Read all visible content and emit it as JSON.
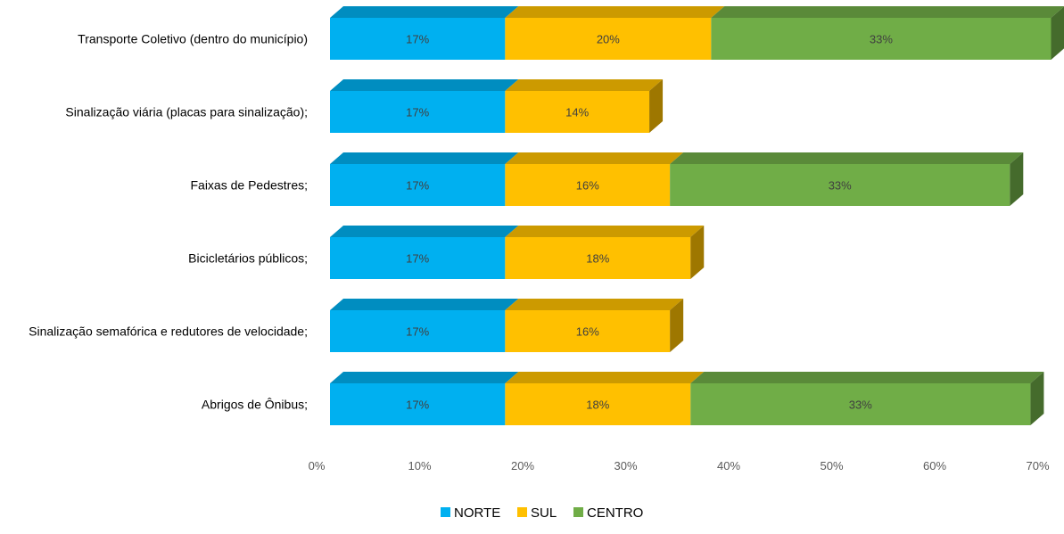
{
  "chart_data": {
    "type": "bar",
    "orientation": "horizontal",
    "stacked": true,
    "three_d": true,
    "categories": [
      "Transporte Coletivo (dentro do município)",
      "Sinalização viária (placas para sinalização);",
      "Faixas de Pedestres;",
      "Bicicletários públicos;",
      "Sinalização semafórica e redutores de velocidade;",
      "Abrigos de Ônibus;"
    ],
    "series": [
      {
        "name": "NORTE",
        "color": "#00B0F0",
        "values": [
          17,
          17,
          17,
          17,
          17,
          17
        ],
        "labels": [
          "17%",
          "17%",
          "17%",
          "17%",
          "17%",
          "17%"
        ]
      },
      {
        "name": "SUL",
        "color": "#FFC000",
        "values": [
          20,
          14,
          16,
          18,
          16,
          18
        ],
        "labels": [
          "20%",
          "14%",
          "16%",
          "18%",
          "16%",
          "18%"
        ]
      },
      {
        "name": "CENTRO",
        "color": "#70AD47",
        "values": [
          33,
          0,
          33,
          0,
          0,
          33
        ],
        "labels": [
          "33%",
          "",
          "33%",
          "",
          "",
          "33%"
        ]
      }
    ],
    "xlim": [
      0,
      70
    ],
    "x_ticks": [
      "0%",
      "10%",
      "20%",
      "30%",
      "40%",
      "50%",
      "60%",
      "70%"
    ],
    "legend_position": "bottom",
    "grid": false
  }
}
